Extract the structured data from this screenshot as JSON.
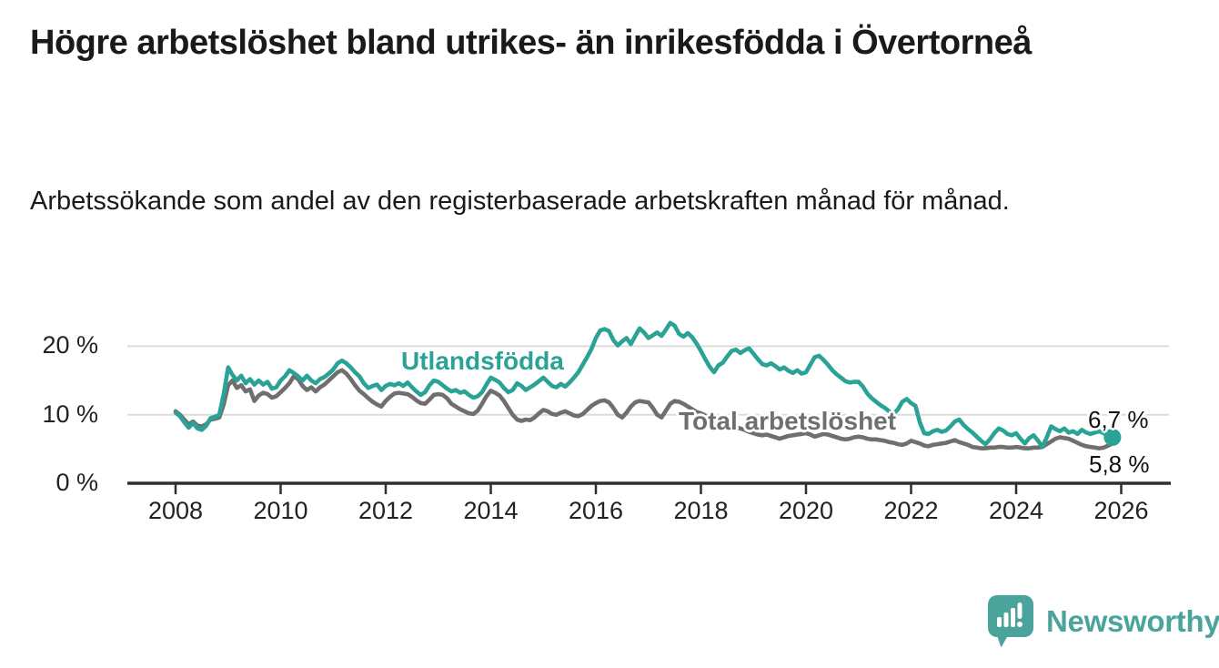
{
  "header": {
    "title": "Högre arbetslöshet bland utrikes- än inrikesfödda i Övertorneå",
    "subtitle": "Arbetssökande som andel av den registerbaserade arbetskraften månad för månad."
  },
  "footer": {
    "brand": "Newsworthy"
  },
  "colors": {
    "foreign_born_line": "#2aa396",
    "total_line": "#6f6f6f",
    "axis": "#2f2f2f",
    "grid": "#dcdcdc",
    "text": "#1a1a1a",
    "brand": "#4ba49c"
  },
  "chart_data": {
    "type": "line",
    "title": "Högre arbetslöshet bland utrikes- än inrikesfödda i Övertorneå",
    "subtitle": "Arbetssökande som andel av den registerbaserade arbetskraften månad för månad.",
    "unit": "%",
    "x_start": 2008.0,
    "x_step_months": 1,
    "xlim": [
      2007.1,
      2026.95
    ],
    "ylim": [
      0,
      25
    ],
    "grid": true,
    "legend": "inline-labels",
    "x_ticks": [
      2008,
      2010,
      2012,
      2014,
      2016,
      2018,
      2020,
      2022,
      2024,
      2026
    ],
    "y_ticks": [
      {
        "value": 0,
        "label": "0 %"
      },
      {
        "value": 10,
        "label": "10 %"
      },
      {
        "value": 20,
        "label": "20 %"
      }
    ],
    "series": [
      {
        "name": "Utlandsfödda",
        "color": "#2aa396",
        "end_label": "6,7 %",
        "end_value": 6.7,
        "end_dot": true,
        "values": [
          10.3,
          9.8,
          8.9,
          8.1,
          8.8,
          8.0,
          7.8,
          8.4,
          9.5,
          9.7,
          10.0,
          13.0,
          16.9,
          15.8,
          15.0,
          15.7,
          14.6,
          15.2,
          14.4,
          15.0,
          14.4,
          14.8,
          13.8,
          14.0,
          15.0,
          15.6,
          16.5,
          16.1,
          15.6,
          15.0,
          15.7,
          15.0,
          14.6,
          15.2,
          15.5,
          16.0,
          16.6,
          17.5,
          17.9,
          17.5,
          16.9,
          16.2,
          15.6,
          14.6,
          13.9,
          14.2,
          14.4,
          13.6,
          14.2,
          14.5,
          14.3,
          14.6,
          14.2,
          14.7,
          14.0,
          13.4,
          12.9,
          13.3,
          14.3,
          15.0,
          14.8,
          14.3,
          13.8,
          13.4,
          13.6,
          13.2,
          13.4,
          12.9,
          12.5,
          12.7,
          13.3,
          14.4,
          15.4,
          15.1,
          14.7,
          13.9,
          13.3,
          13.6,
          14.6,
          14.2,
          13.6,
          14.0,
          14.4,
          14.9,
          15.4,
          14.8,
          14.2,
          14.0,
          14.5,
          14.1,
          14.7,
          15.4,
          16.2,
          17.3,
          18.4,
          19.6,
          21.2,
          22.3,
          22.5,
          22.2,
          20.9,
          20.1,
          20.7,
          21.2,
          20.3,
          21.5,
          22.6,
          22.0,
          21.2,
          21.6,
          22.0,
          21.5,
          22.4,
          23.4,
          23.0,
          21.8,
          21.4,
          21.9,
          21.3,
          20.4,
          19.3,
          18.1,
          17.0,
          16.2,
          17.2,
          17.6,
          18.5,
          19.3,
          19.5,
          19.0,
          19.4,
          19.7,
          18.9,
          18.1,
          17.4,
          17.2,
          17.5,
          17.1,
          16.6,
          16.9,
          16.4,
          16.1,
          16.5,
          16.0,
          16.2,
          17.3,
          18.4,
          18.6,
          18.0,
          17.3,
          16.5,
          15.9,
          15.4,
          14.9,
          14.7,
          14.8,
          14.8,
          14.1,
          13.1,
          12.4,
          11.9,
          11.4,
          11.0,
          10.5,
          10.1,
          10.8,
          11.9,
          12.3,
          11.7,
          11.3,
          8.9,
          7.3,
          7.2,
          7.6,
          7.8,
          7.5,
          7.7,
          8.3,
          9.0,
          9.3,
          8.5,
          7.9,
          7.4,
          6.8,
          6.2,
          5.7,
          6.4,
          7.3,
          8.0,
          7.7,
          7.2,
          7.0,
          7.3,
          6.5,
          5.8,
          6.6,
          7.0,
          6.2,
          5.3,
          6.7,
          8.3,
          7.9,
          7.6,
          8.0,
          7.4,
          7.6,
          7.2,
          7.8,
          7.4,
          7.2,
          7.4,
          7.6,
          7.3,
          6.9,
          6.7
        ]
      },
      {
        "name": "Total arbetslöshet",
        "color": "#6f6f6f",
        "end_label": "5,8 %",
        "end_value": 5.8,
        "end_dot": false,
        "values": [
          10.5,
          10.0,
          9.3,
          8.6,
          9.0,
          8.4,
          8.3,
          8.6,
          9.3,
          9.4,
          9.6,
          11.5,
          14.3,
          15.0,
          13.9,
          14.3,
          13.4,
          13.7,
          12.0,
          12.8,
          13.2,
          13.0,
          12.5,
          12.7,
          13.3,
          13.9,
          14.6,
          15.6,
          15.2,
          14.2,
          13.6,
          14.0,
          13.4,
          14.0,
          14.4,
          15.0,
          15.6,
          16.2,
          16.5,
          16.0,
          15.2,
          14.3,
          13.5,
          13.0,
          12.4,
          11.9,
          11.5,
          11.2,
          12.0,
          12.6,
          13.1,
          13.2,
          13.1,
          13.0,
          12.6,
          12.1,
          11.7,
          11.6,
          12.2,
          12.9,
          13.0,
          12.9,
          12.4,
          11.6,
          11.2,
          10.8,
          10.5,
          10.2,
          10.1,
          10.6,
          11.6,
          12.7,
          13.5,
          13.2,
          12.8,
          12.0,
          11.0,
          10.0,
          9.3,
          9.1,
          9.3,
          9.2,
          9.6,
          10.2,
          10.7,
          10.5,
          10.1,
          10.0,
          10.3,
          10.5,
          10.2,
          9.9,
          9.8,
          10.1,
          10.7,
          11.3,
          11.7,
          12.0,
          12.1,
          11.8,
          11.0,
          10.0,
          9.6,
          10.3,
          11.2,
          11.8,
          12.0,
          11.9,
          11.8,
          11.0,
          10.0,
          9.6,
          10.6,
          11.6,
          12.0,
          11.9,
          11.6,
          11.2,
          10.8,
          10.4,
          10.2,
          9.9,
          9.5,
          9.2,
          9.0,
          8.8,
          8.6,
          8.4,
          8.2,
          8.0,
          7.8,
          7.5,
          7.3,
          7.1,
          7.0,
          7.1,
          6.9,
          6.7,
          6.5,
          6.7,
          6.9,
          7.0,
          7.1,
          7.2,
          7.3,
          7.1,
          6.8,
          7.0,
          7.2,
          7.1,
          6.9,
          6.7,
          6.5,
          6.4,
          6.5,
          6.7,
          6.8,
          6.7,
          6.5,
          6.4,
          6.4,
          6.3,
          6.2,
          6.0,
          5.9,
          5.7,
          5.6,
          5.8,
          6.2,
          6.0,
          5.8,
          5.5,
          5.4,
          5.6,
          5.7,
          5.8,
          5.9,
          6.1,
          6.3,
          6.0,
          5.8,
          5.6,
          5.3,
          5.2,
          5.1,
          5.1,
          5.2,
          5.2,
          5.3,
          5.3,
          5.2,
          5.2,
          5.3,
          5.2,
          5.1,
          5.1,
          5.2,
          5.2,
          5.3,
          5.7,
          6.1,
          6.5,
          6.7,
          6.6,
          6.5,
          6.2,
          5.9,
          5.6,
          5.4,
          5.3,
          5.2,
          5.1,
          5.2,
          5.5,
          5.8
        ]
      }
    ]
  }
}
